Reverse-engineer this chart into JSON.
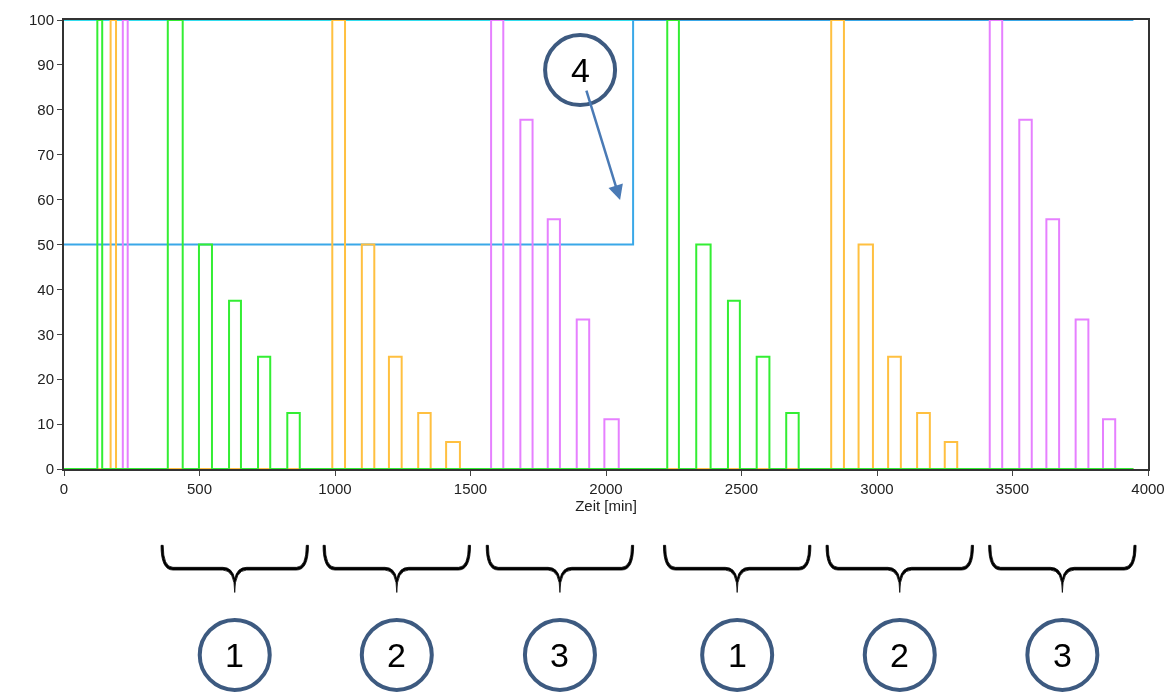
{
  "chart_data": {
    "type": "step",
    "xlabel": "Zeit [min]",
    "xlim": [
      0,
      4000
    ],
    "ylim": [
      0,
      100
    ],
    "xticks": [
      0,
      500,
      1000,
      1500,
      2000,
      2500,
      3000,
      3500,
      4000
    ],
    "yticks": [
      0,
      10,
      20,
      30,
      40,
      50,
      60,
      70,
      80,
      90,
      100
    ],
    "marker": "none",
    "line_style": "solid",
    "series": [
      {
        "color": "#33ddee",
        "x": [
          0,
          2100
        ],
        "values": [
          100,
          100
        ]
      },
      {
        "color": "#3aa8e8",
        "x": [
          0,
          2100,
          3946
        ],
        "values": [
          50,
          100,
          100
        ]
      },
      {
        "color": "#e680ff",
        "x": [
          0,
          217,
          235,
          1576,
          1621,
          1684,
          1729,
          1785,
          1830,
          1892,
          1938,
          1994,
          2047,
          3416,
          3462,
          3525,
          3571,
          3625,
          3672,
          3733,
          3780,
          3834,
          3879,
          3946
        ],
        "values": [
          0,
          100,
          0,
          100,
          0,
          77.8,
          0,
          55.6,
          0,
          33.3,
          0,
          11.1,
          0,
          100,
          0,
          77.8,
          0,
          55.6,
          0,
          33.3,
          0,
          11.1,
          0,
          0
        ]
      },
      {
        "color": "#ffc040",
        "x": [
          0,
          172,
          192,
          990,
          1037,
          1099,
          1145,
          1199,
          1246,
          1307,
          1353,
          1410,
          1461,
          2831,
          2878,
          2932,
          2985,
          3041,
          3088,
          3148,
          3195,
          3250,
          3296,
          3946
        ],
        "values": [
          0,
          100,
          0,
          100,
          0,
          50,
          0,
          25,
          0,
          12.5,
          0,
          6,
          0,
          100,
          0,
          50,
          0,
          25,
          0,
          12.5,
          0,
          6,
          0,
          0
        ]
      },
      {
        "color": "#33ee33",
        "x": [
          0,
          123,
          141,
          383,
          438,
          498,
          546,
          609,
          653,
          716,
          761,
          824,
          870,
          2226,
          2269,
          2333,
          2386,
          2450,
          2494,
          2556,
          2603,
          2665,
          2711,
          3946
        ],
        "values": [
          0,
          100,
          0,
          100,
          0,
          50,
          0,
          37.5,
          0,
          25,
          0,
          12.5,
          0,
          100,
          0,
          50,
          0,
          37.5,
          0,
          25,
          0,
          12.5,
          0,
          0
        ]
      }
    ],
    "annotations": [
      "4",
      "1",
      "2",
      "3",
      "1",
      "2",
      "3"
    ]
  }
}
